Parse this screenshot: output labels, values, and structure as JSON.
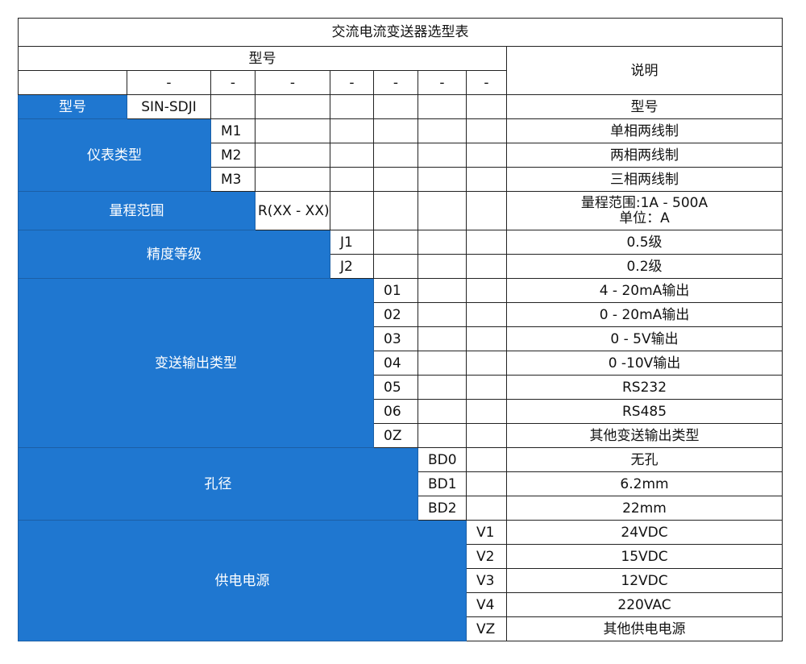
{
  "title": "交流电流变送器选型表",
  "header": {
    "model": "型号",
    "description": "说明",
    "dashes": [
      "-",
      "-",
      "-",
      "-",
      "-",
      "-",
      "-"
    ]
  },
  "colors": {
    "accent": "#1f77d0"
  },
  "model_row": {
    "label": "型号",
    "value": "SIN-SDJI",
    "description": "型号"
  },
  "groups": [
    {
      "label": "仪表类型",
      "options": [
        {
          "code": "M1",
          "description": "单相两线制"
        },
        {
          "code": "M2",
          "description": "两相两线制"
        },
        {
          "code": "M3",
          "description": "三相两线制"
        }
      ]
    },
    {
      "label": "量程范围",
      "options": [
        {
          "code": "R(XX - XX)",
          "description": "量程范围:1A - 500A",
          "description2": "单位：A"
        }
      ]
    },
    {
      "label": "精度等级",
      "options": [
        {
          "code": "J1",
          "description": "0.5级"
        },
        {
          "code": "J2",
          "description": "0.2级"
        }
      ]
    },
    {
      "label": "变送输出类型",
      "options": [
        {
          "code": "01",
          "description": "4 - 20mA输出"
        },
        {
          "code": "02",
          "description": "0 - 20mA输出"
        },
        {
          "code": "03",
          "description": "0 - 5V输出"
        },
        {
          "code": "04",
          "description": "0 -10V输出"
        },
        {
          "code": "05",
          "description": "RS232"
        },
        {
          "code": "06",
          "description": "RS485"
        },
        {
          "code": "0Z",
          "description": "其他变送输出类型"
        }
      ]
    },
    {
      "label": "孔径",
      "options": [
        {
          "code": "BD0",
          "description": "无孔"
        },
        {
          "code": "BD1",
          "description": "6.2mm"
        },
        {
          "code": "BD2",
          "description": "22mm"
        }
      ]
    },
    {
      "label": "供电电源",
      "options": [
        {
          "code": "V1",
          "description": "24VDC"
        },
        {
          "code": "V2",
          "description": "15VDC"
        },
        {
          "code": "V3",
          "description": "12VDC"
        },
        {
          "code": "V4",
          "description": "220VAC"
        },
        {
          "code": "VZ",
          "description": "其他供电电源"
        }
      ]
    }
  ]
}
